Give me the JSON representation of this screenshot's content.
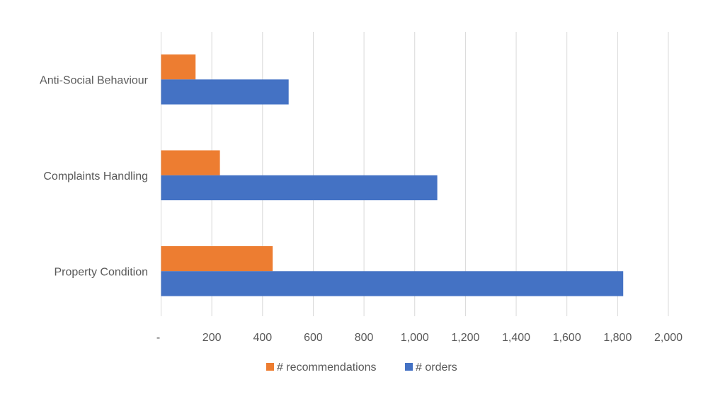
{
  "chart_data": {
    "type": "bar",
    "orientation": "horizontal",
    "categories": [
      "Anti-Social Behaviour",
      "Complaints Handling",
      "Property Condition"
    ],
    "series": [
      {
        "name": "# recommendations",
        "color": "#ED7D31",
        "values": [
          136,
          232,
          440
        ]
      },
      {
        "name": "# orders",
        "color": "#4472C4",
        "values": [
          503,
          1089,
          1822
        ]
      }
    ],
    "xlim": [
      0,
      2000
    ],
    "xticks": [
      0,
      200,
      400,
      600,
      800,
      1000,
      1200,
      1400,
      1600,
      1800,
      2000
    ],
    "xtick_labels": [
      "-",
      "200",
      "400",
      "600",
      "800",
      "1,000",
      "1,200",
      "1,400",
      "1,600",
      "1,800",
      "2,000"
    ],
    "grid": "vertical",
    "legend": "bottom",
    "title": "",
    "xlabel": "",
    "ylabel": ""
  }
}
